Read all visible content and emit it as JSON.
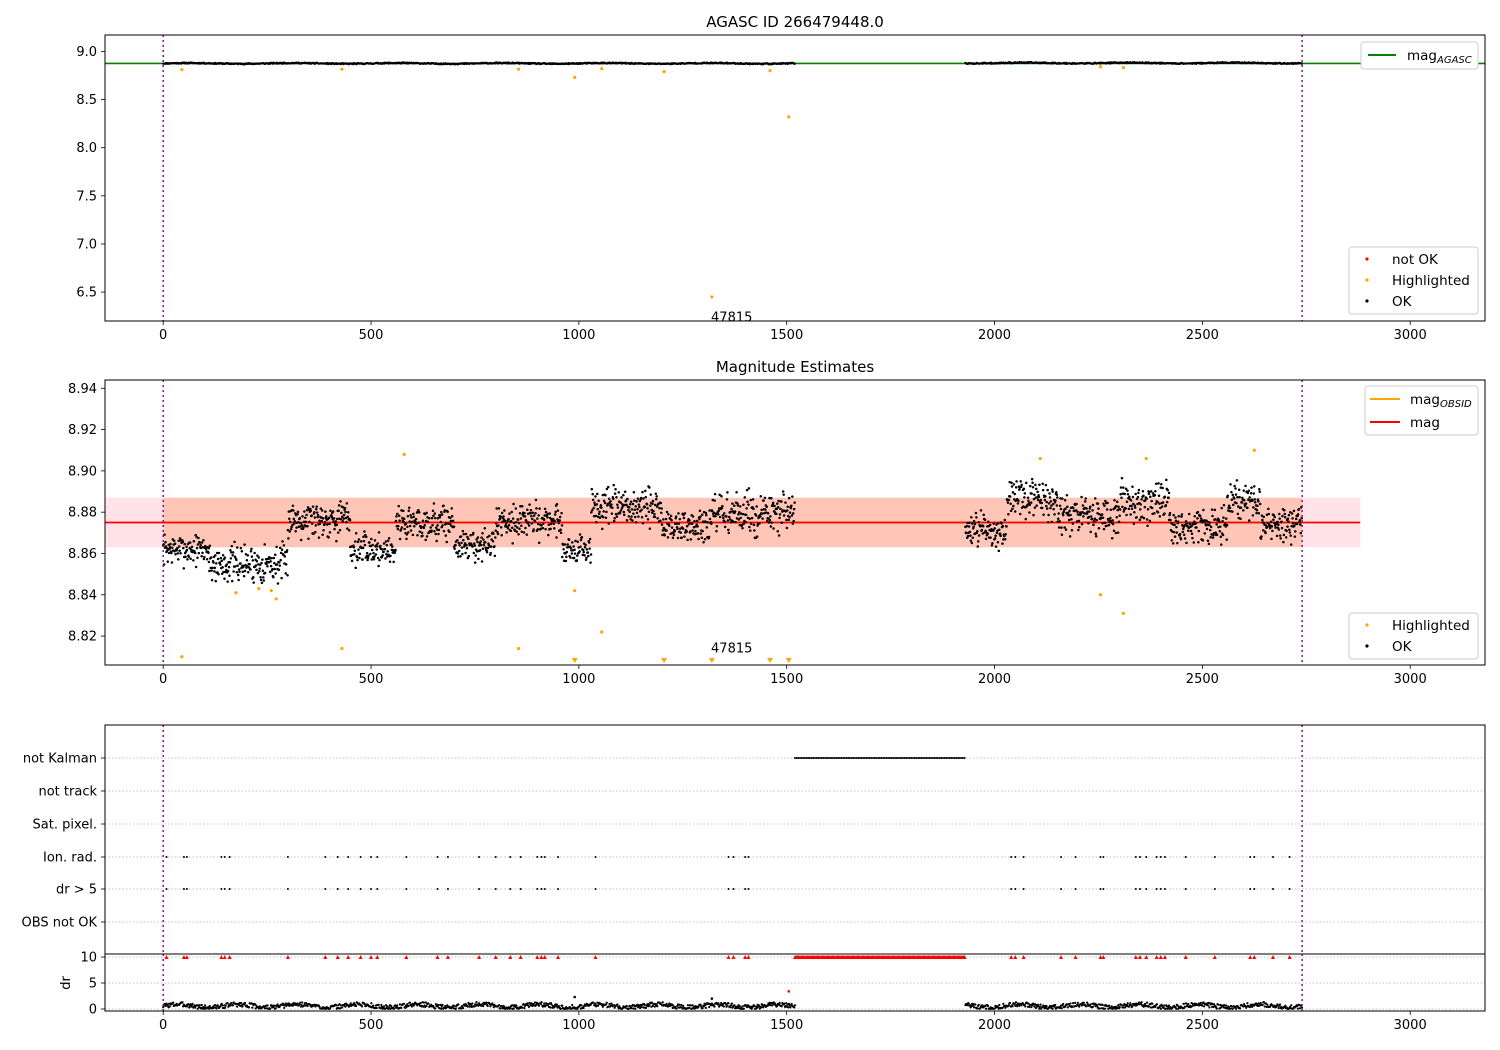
{
  "chart_data": [
    {
      "type": "scatter",
      "title": "AGASC ID 266479448.0",
      "xlabel": "",
      "ylabel": "",
      "xlim": [
        -140,
        3180
      ],
      "ylim": [
        6.2,
        9.17
      ],
      "xticks": [
        0,
        500,
        1000,
        1500,
        2000,
        2500,
        3000
      ],
      "yticks": [
        6.5,
        7.0,
        7.5,
        8.0,
        8.5,
        9.0
      ],
      "ytick_labels": [
        "6.5",
        "7.0",
        "7.5",
        "8.0",
        "8.5",
        "9.0"
      ],
      "grid": false,
      "vlines": [
        0,
        2740
      ],
      "hline": {
        "y": 8.875,
        "label": "mag",
        "label_sub": "AGASC",
        "color": "#008000"
      },
      "annotation": {
        "x": 1318,
        "y": 6.3,
        "text": "47815"
      },
      "ok_segments": [
        {
          "x_start": 0,
          "x_end": 1520,
          "y": 8.875,
          "spread": 0.012
        },
        {
          "x_start": 1930,
          "x_end": 2740,
          "y": 8.879,
          "spread": 0.012
        }
      ],
      "series": [
        {
          "name": "not OK",
          "color": "#ff0000",
          "x": [],
          "y": []
        },
        {
          "name": "Highlighted",
          "color": "#ffa500",
          "x": [
            45,
            430,
            855,
            990,
            1055,
            1205,
            1320,
            1460,
            1505,
            2255,
            2310
          ],
          "y": [
            8.81,
            8.815,
            8.815,
            8.73,
            8.82,
            8.79,
            6.45,
            8.8,
            8.32,
            8.84,
            8.832
          ]
        },
        {
          "name": "OK",
          "color": "#000000",
          "x": [],
          "y": []
        }
      ],
      "legend_position": "top-right and lower-right"
    },
    {
      "type": "scatter",
      "title": "Magnitude Estimates",
      "xlabel": "",
      "ylabel": "",
      "xlim": [
        -140,
        3180
      ],
      "ylim": [
        8.806,
        8.944
      ],
      "xticks": [
        0,
        500,
        1000,
        1500,
        2000,
        2500,
        3000
      ],
      "yticks": [
        8.82,
        8.84,
        8.86,
        8.88,
        8.9,
        8.92,
        8.94
      ],
      "ytick_labels": [
        "8.82",
        "8.84",
        "8.86",
        "8.88",
        "8.90",
        "8.92",
        "8.94"
      ],
      "grid": false,
      "vlines": [
        0,
        2740
      ],
      "band_outer": {
        "x_start": -140,
        "x_end": 2880,
        "y_low": 8.863,
        "y_high": 8.887,
        "color": "#ffc0cb"
      },
      "band_inner": {
        "x_start": 0,
        "x_end": 2740,
        "y_low": 8.863,
        "y_high": 8.887,
        "color": "#ffa07a"
      },
      "lines": [
        {
          "name": "mag",
          "label_sub": "OBSID",
          "color": "#ffa500",
          "x_start": 0,
          "x_end": 2740,
          "y": 8.875
        },
        {
          "name": "mag",
          "label_sub": "",
          "color": "#ff0000",
          "x_start": -140,
          "x_end": 2880,
          "y": 8.875
        }
      ],
      "annotation": {
        "x": 1318,
        "y": 8.81,
        "text": "47815"
      },
      "segments": [
        {
          "x_start": 0,
          "x_end": 110,
          "base": 8.862,
          "amp": 0.008
        },
        {
          "x_start": 110,
          "x_end": 300,
          "base": 8.855,
          "amp": 0.01
        },
        {
          "x_start": 300,
          "x_end": 450,
          "base": 8.877,
          "amp": 0.01
        },
        {
          "x_start": 450,
          "x_end": 560,
          "base": 8.862,
          "amp": 0.008
        },
        {
          "x_start": 560,
          "x_end": 700,
          "base": 8.875,
          "amp": 0.01
        },
        {
          "x_start": 700,
          "x_end": 800,
          "base": 8.864,
          "amp": 0.008
        },
        {
          "x_start": 800,
          "x_end": 960,
          "base": 8.876,
          "amp": 0.009
        },
        {
          "x_start": 960,
          "x_end": 1030,
          "base": 8.862,
          "amp": 0.008
        },
        {
          "x_start": 1030,
          "x_end": 1200,
          "base": 8.882,
          "amp": 0.01
        },
        {
          "x_start": 1200,
          "x_end": 1320,
          "base": 8.873,
          "amp": 0.01
        },
        {
          "x_start": 1320,
          "x_end": 1520,
          "base": 8.879,
          "amp": 0.011
        },
        {
          "x_start": 1930,
          "x_end": 2030,
          "base": 8.871,
          "amp": 0.009
        },
        {
          "x_start": 2030,
          "x_end": 2150,
          "base": 8.886,
          "amp": 0.01
        },
        {
          "x_start": 2150,
          "x_end": 2300,
          "base": 8.878,
          "amp": 0.01
        },
        {
          "x_start": 2300,
          "x_end": 2420,
          "base": 8.885,
          "amp": 0.01
        },
        {
          "x_start": 2420,
          "x_end": 2560,
          "base": 8.873,
          "amp": 0.009
        },
        {
          "x_start": 2560,
          "x_end": 2640,
          "base": 8.885,
          "amp": 0.01
        },
        {
          "x_start": 2640,
          "x_end": 2740,
          "base": 8.874,
          "amp": 0.009
        }
      ],
      "series": [
        {
          "name": "Highlighted",
          "color": "#ffa500",
          "x": [
            45,
            175,
            230,
            260,
            272,
            430,
            580,
            855,
            990,
            1055,
            2110,
            2255,
            2310,
            2365,
            2625
          ],
          "y": [
            8.81,
            8.841,
            8.843,
            8.842,
            8.838,
            8.814,
            8.908,
            8.814,
            8.842,
            8.822,
            8.906,
            8.84,
            8.831,
            8.906,
            8.91
          ]
        },
        {
          "name": "OK",
          "color": "#000000",
          "x": [],
          "y": []
        }
      ],
      "off_scale_markers": {
        "x": [
          990,
          1205,
          1320,
          1460,
          1505
        ],
        "direction": "down",
        "color": "#ffa500"
      }
    },
    {
      "type": "scatter",
      "title": "",
      "xlabel": "",
      "ylabel": "",
      "xlim": [
        -140,
        3180
      ],
      "xticks": [
        0,
        500,
        1000,
        1500,
        2000,
        2500,
        3000
      ],
      "vlines": [
        0,
        2740
      ],
      "flag_labels": [
        "not Kalman",
        "not track",
        "Sat. pixel.",
        "Ion. rad.",
        "dr > 5",
        "OBS not OK"
      ],
      "flags": {
        "not Kalman": {
          "x_ranges": [
            [
              1520,
              1930
            ]
          ]
        },
        "not track": {
          "x": []
        },
        "Sat. pixel.": {
          "x": []
        },
        "Ion. rad.": {
          "x": [
            8,
            50,
            57,
            140,
            148,
            160,
            300,
            390,
            420,
            445,
            475,
            500,
            515,
            585,
            660,
            685,
            760,
            800,
            835,
            860,
            900,
            910,
            918,
            950,
            1040,
            1360,
            1372,
            1400,
            1408,
            2040,
            2050,
            2070,
            2160,
            2195,
            2255,
            2262,
            2340,
            2350,
            2365,
            2390,
            2400,
            2410,
            2460,
            2530,
            2615,
            2625,
            2670,
            2710
          ]
        },
        "dr > 5": {
          "x": [
            8,
            50,
            57,
            140,
            148,
            160,
            300,
            390,
            420,
            445,
            475,
            500,
            515,
            585,
            660,
            685,
            760,
            800,
            835,
            860,
            900,
            910,
            918,
            950,
            1040,
            1360,
            1372,
            1400,
            1408,
            2040,
            2050,
            2070,
            2160,
            2195,
            2255,
            2262,
            2340,
            2350,
            2365,
            2390,
            2400,
            2410,
            2460,
            2530,
            2615,
            2625,
            2670,
            2710
          ]
        },
        "OBS not OK": {
          "x": []
        }
      }
    },
    {
      "type": "scatter",
      "title": "",
      "xlabel": "",
      "ylabel": "dr",
      "xlim": [
        -140,
        3180
      ],
      "ylim": [
        -0.5,
        10.5
      ],
      "xticks": [
        0,
        500,
        1000,
        1500,
        2000,
        2500,
        3000
      ],
      "yticks": [
        0,
        5,
        10
      ],
      "ytick_labels": [
        "0",
        "5",
        "10"
      ],
      "vlines": [
        0,
        2740
      ],
      "dr_segments": [
        {
          "x_start": 0,
          "x_end": 1520
        },
        {
          "x_start": 1930,
          "x_end": 2740
        }
      ],
      "dr_level": 0.6,
      "outliers": {
        "x": [
          990,
          1320,
          1505
        ],
        "y": [
          2.3,
          2.0,
          3.4
        ],
        "colors": [
          "#000000",
          "#000000",
          "#ff0000"
        ]
      },
      "clipped_markers": {
        "y": 10,
        "color": "#ff0000",
        "x_ranges": [
          [
            1520,
            1930
          ]
        ],
        "x": [
          8,
          50,
          57,
          140,
          148,
          160,
          300,
          390,
          420,
          445,
          475,
          500,
          515,
          585,
          660,
          685,
          760,
          800,
          835,
          860,
          900,
          910,
          918,
          950,
          1040,
          1360,
          1372,
          1400,
          1408,
          2040,
          2050,
          2070,
          2160,
          2195,
          2255,
          2262,
          2340,
          2350,
          2365,
          2390,
          2400,
          2410,
          2460,
          2530,
          2615,
          2625,
          2670,
          2710
        ]
      }
    }
  ]
}
